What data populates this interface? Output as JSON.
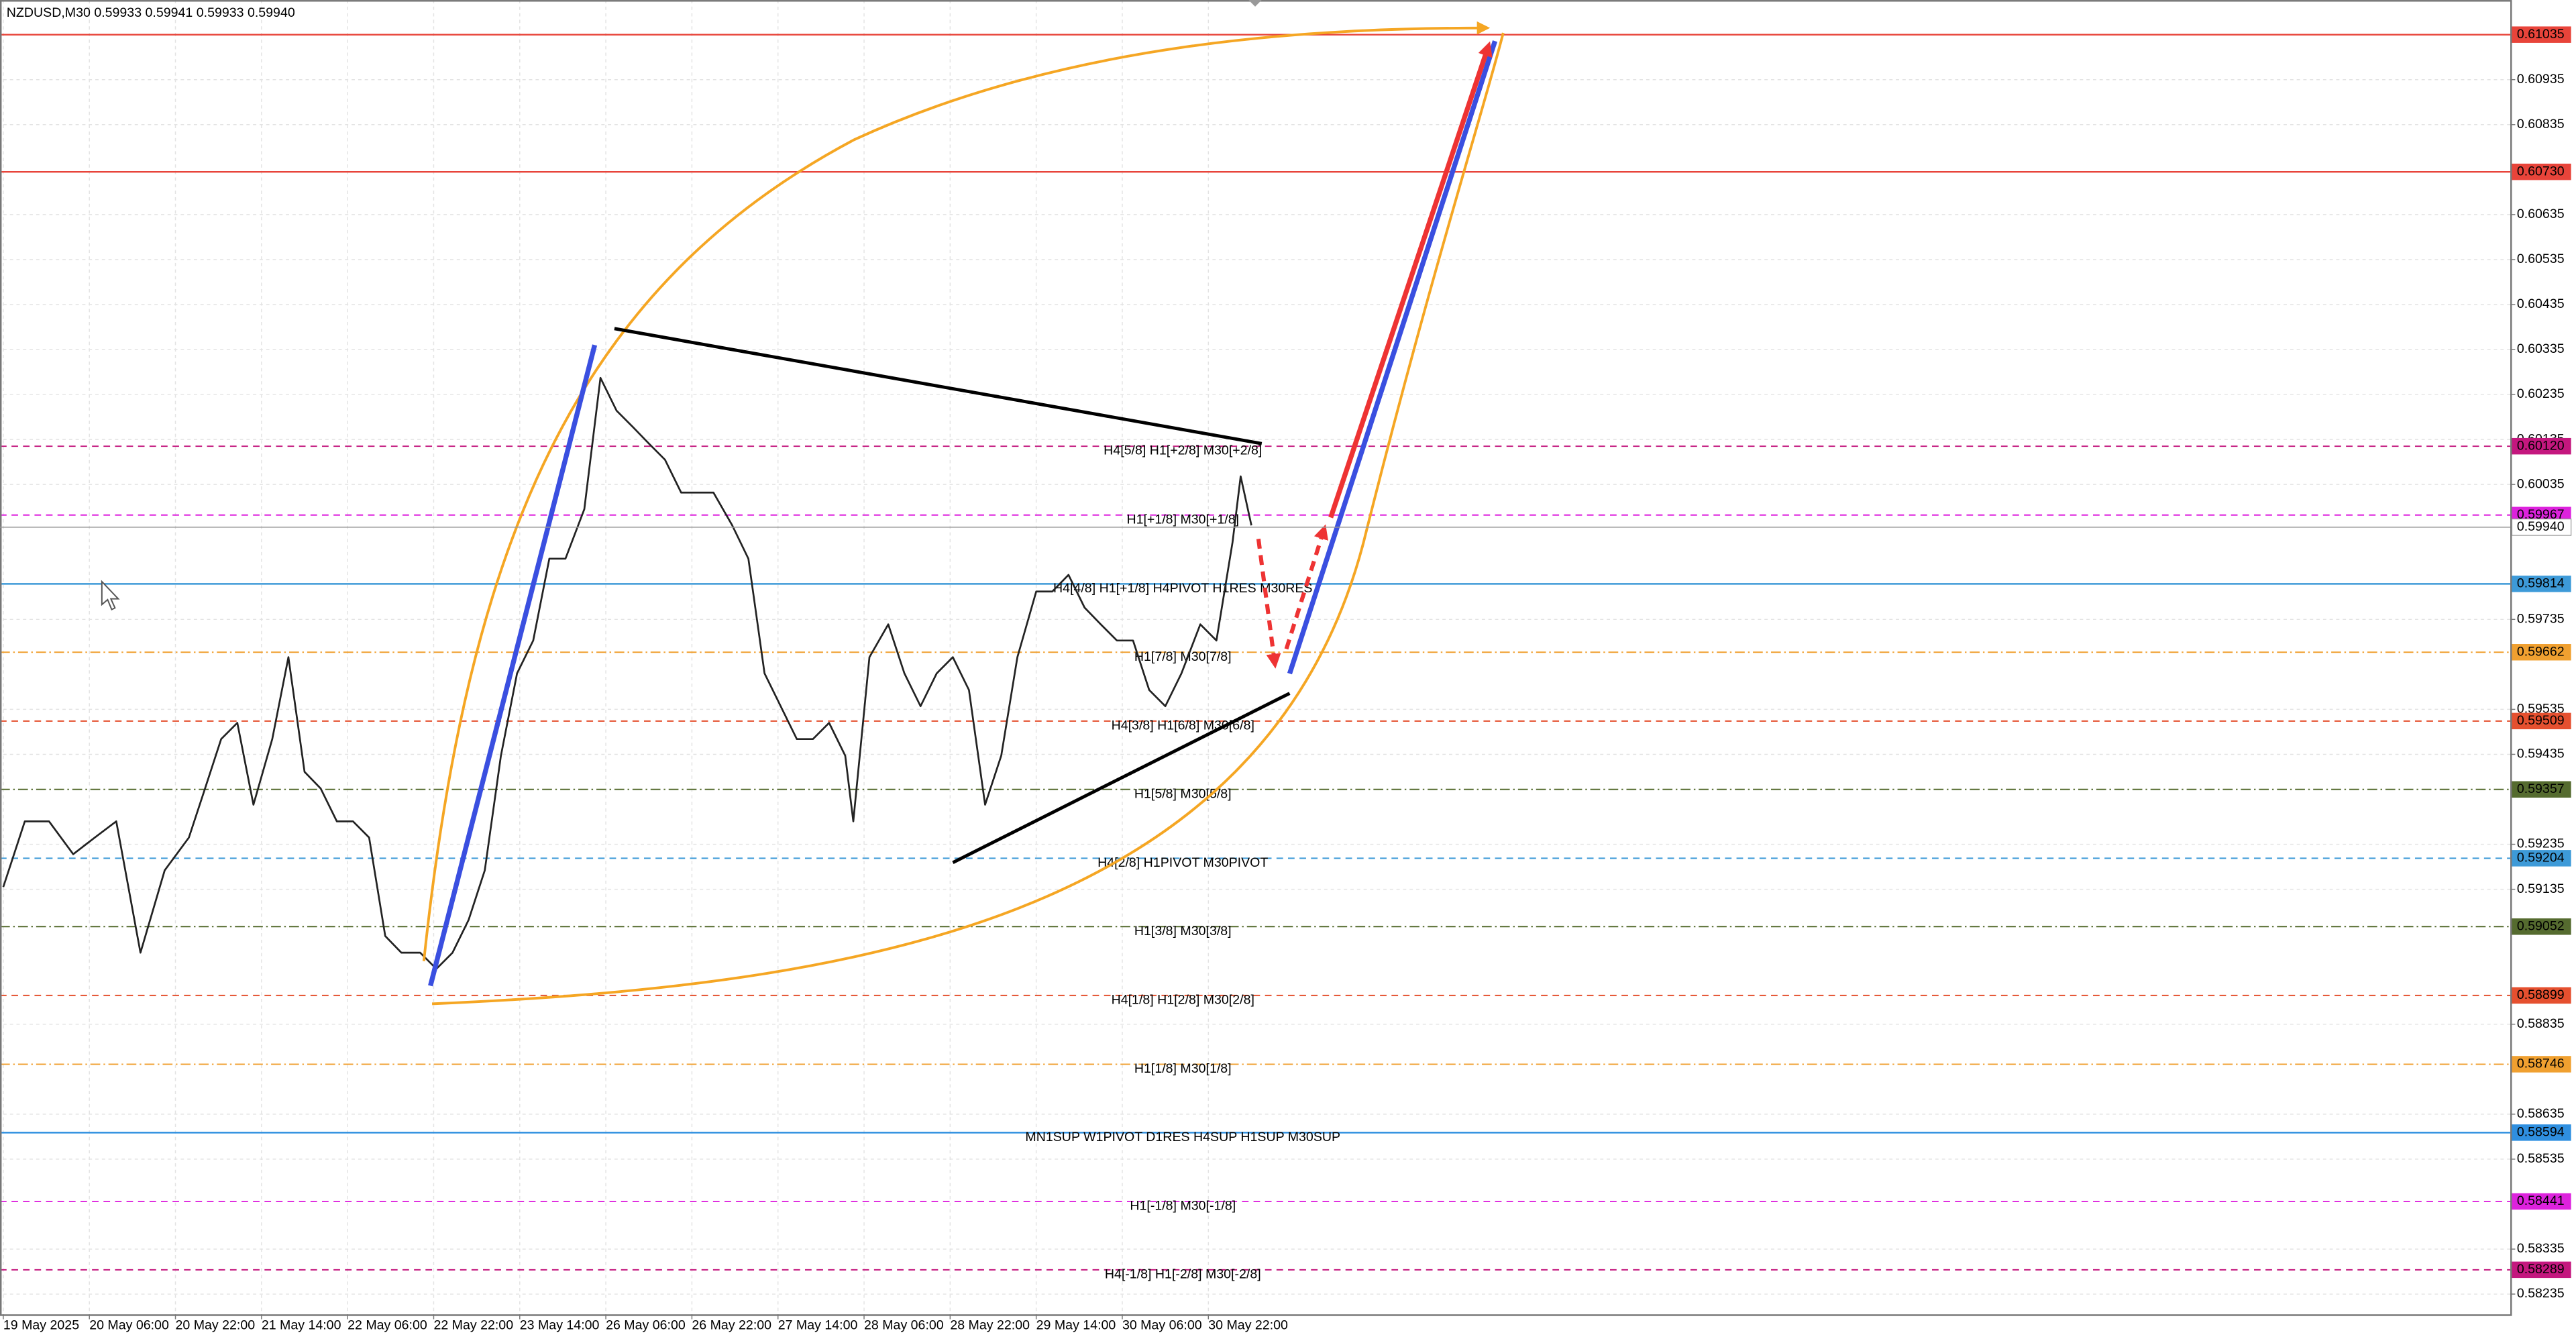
{
  "chart_data": {
    "type": "line",
    "title": "NZDUSD,M30  0.59933 0.59941 0.59933 0.59940",
    "color": "#222222",
    "x": [
      0,
      8,
      17,
      26,
      34,
      42,
      51,
      60,
      69,
      75,
      81,
      87,
      93,
      100,
      106,
      112,
      118,
      124,
      130,
      136,
      142,
      148,
      155,
      161,
      167,
      173,
      179,
      185,
      191,
      197,
      203,
      209,
      216,
      222,
      228,
      234,
      240,
      246,
      252,
      258,
      264,
      271,
      277,
      283,
      289,
      295,
      301,
      307,
      313,
      316,
      322,
      329,
      335,
      341,
      347,
      353,
      359,
      365,
      371,
      377,
      384,
      390,
      396,
      402,
      408,
      414,
      420,
      426,
      432,
      438,
      445,
      451,
      457,
      460,
      464
    ],
    "values": [
      0.5914,
      0.59286,
      0.59286,
      0.59213,
      0.5925,
      0.59286,
      0.58994,
      0.59177,
      0.5925,
      0.59359,
      0.59469,
      0.59505,
      0.59323,
      0.59469,
      0.59651,
      0.59396,
      0.59359,
      0.59286,
      0.59286,
      0.5925,
      0.59031,
      0.58994,
      0.58994,
      0.58958,
      0.58994,
      0.59067,
      0.59177,
      0.59432,
      0.59615,
      0.59688,
      0.5987,
      0.5987,
      0.5998,
      0.60272,
      0.60199,
      0.60163,
      0.60126,
      0.6009,
      0.60017,
      0.60017,
      0.60017,
      0.59944,
      0.5987,
      0.59615,
      0.59542,
      0.59469,
      0.59469,
      0.59505,
      0.59432,
      0.59286,
      0.59651,
      0.59724,
      0.59615,
      0.59542,
      0.59615,
      0.59651,
      0.59578,
      0.59323,
      0.59432,
      0.59651,
      0.59797,
      0.59797,
      0.59834,
      0.59761,
      0.59724,
      0.59688,
      0.59688,
      0.59578,
      0.59542,
      0.59615,
      0.59724,
      0.59688,
      0.59907,
      0.60053,
      0.59944
    ],
    "xlim": [
      0,
      932
    ],
    "xticks": [
      {
        "value": 0,
        "label": "19 May 2025"
      },
      {
        "value": 32,
        "label": "20 May 06:00"
      },
      {
        "value": 64,
        "label": "20 May 22:00"
      },
      {
        "value": 96,
        "label": "21 May 14:00"
      },
      {
        "value": 128,
        "label": "22 May 06:00"
      },
      {
        "value": 160,
        "label": "22 May 22:00"
      },
      {
        "value": 192,
        "label": "23 May 14:00"
      },
      {
        "value": 224,
        "label": "26 May 06:00"
      },
      {
        "value": 256,
        "label": "26 May 22:00"
      },
      {
        "value": 288,
        "label": "27 May 14:00"
      },
      {
        "value": 320,
        "label": "28 May 06:00"
      },
      {
        "value": 352,
        "label": "28 May 22:00"
      },
      {
        "value": 384,
        "label": "29 May 14:00"
      },
      {
        "value": 416,
        "label": "30 May 06:00"
      },
      {
        "value": 448,
        "label": "30 May 22:00"
      }
    ],
    "ylim": [
      0.5819,
      0.61112
    ],
    "yticks": [
      0.61035,
      0.60935,
      0.60835,
      0.60635,
      0.60535,
      0.60435,
      0.60335,
      0.60235,
      0.60135,
      0.60035,
      0.59735,
      0.59535,
      0.59435,
      0.59235,
      0.59135,
      0.58835,
      0.58635,
      0.58535,
      0.58335,
      0.58235
    ],
    "grid": true,
    "last_price": {
      "value": 0.5994,
      "label": "0.59940"
    },
    "levels": [
      {
        "value": 0.61035,
        "value_label": "0.61035",
        "color": "#e8443a",
        "dash": "solid"
      },
      {
        "value": 0.6073,
        "value_label": "0.60730",
        "color": "#e8443a",
        "dash": "solid"
      },
      {
        "text": "H4[5/8] H1[+2/8] M30[+2/8]",
        "value": 0.6012,
        "value_label": "0.60120",
        "color": "#c4177e",
        "dash": "dashed"
      },
      {
        "text": "H1[+1/8] M30[+1/8]",
        "value": 0.59967,
        "value_label": "0.59967",
        "color": "#dd22dd",
        "dash": "dashed"
      },
      {
        "text": "H4[4/8] H1[+1/8] H4PIVOT H1RES M30RES",
        "value": 0.59814,
        "value_label": "0.59814",
        "color": "#3d9ad8",
        "dash": "solid"
      },
      {
        "text": "H1[7/8] M30[7/8]",
        "value": 0.59662,
        "value_label": "0.59662",
        "color": "#f0a030",
        "dash": "dashdot"
      },
      {
        "text": "H4[3/8] H1[6/8] M30[6/8]",
        "value": 0.59509,
        "value_label": "0.59509",
        "color": "#e5502f",
        "dash": "dashed"
      },
      {
        "text": "H1[5/8] M30[5/8]",
        "value": 0.59357,
        "value_label": "0.59357",
        "color": "#556b2f",
        "dash": "dashdot"
      },
      {
        "text": "H4[2/8] H1PIVOT M30PIVOT",
        "value": 0.59204,
        "value_label": "0.59204",
        "color": "#3d9ad8",
        "dash": "dashed"
      },
      {
        "text": "H1[3/8] M30[3/8]",
        "value": 0.59052,
        "value_label": "0.59052",
        "color": "#556b2f",
        "dash": "dashdot"
      },
      {
        "text": "H4[1/8] H1[2/8] M30[2/8]",
        "value": 0.58899,
        "value_label": "0.58899",
        "color": "#e5502f",
        "dash": "dashed"
      },
      {
        "text": "H1[1/8] M30[1/8]",
        "value": 0.58746,
        "value_label": "0.58746",
        "color": "#f0a030",
        "dash": "dashdot"
      },
      {
        "text": "MN1SUP W1PIVOT D1RES H4SUP H1SUP M30SUP",
        "value": 0.58594,
        "value_label": "0.58594",
        "color": "#2f8fe0",
        "dash": "solid"
      },
      {
        "text": "H1[-1/8] M30[-1/8]",
        "value": 0.58441,
        "value_label": "0.58441",
        "color": "#dd22dd",
        "dash": "dashed"
      },
      {
        "text": "H4[-1/8] H1[-2/8] M30[-2/8]",
        "value": 0.58289,
        "value_label": "0.58289",
        "color": "#c4177e",
        "dash": "dashed"
      }
    ]
  }
}
